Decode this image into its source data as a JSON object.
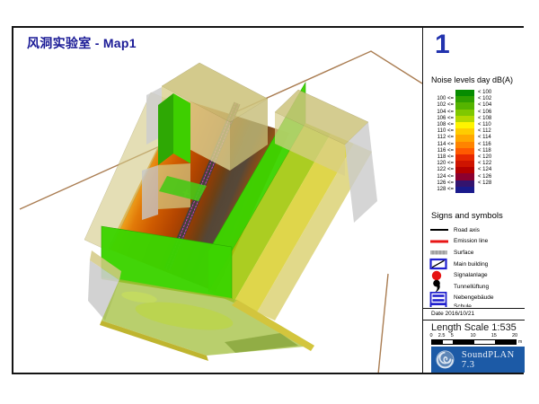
{
  "title": "风洞实验室 - Map1",
  "map_number": "1",
  "noise_legend": {
    "title": "Noise levels day dB(A)",
    "rows": [
      {
        "from": "",
        "to": "< 100",
        "color": "#068C00"
      },
      {
        "from": "100 <=",
        "to": "< 102",
        "color": "#2FA000"
      },
      {
        "from": "102 <=",
        "to": "< 104",
        "color": "#55B400"
      },
      {
        "from": "104 <=",
        "to": "< 106",
        "color": "#7FC800"
      },
      {
        "from": "106 <=",
        "to": "< 108",
        "color": "#B4D800"
      },
      {
        "from": "108 <=",
        "to": "< 110",
        "color": "#FFF400"
      },
      {
        "from": "110 <=",
        "to": "< 112",
        "color": "#FFCC00"
      },
      {
        "from": "112 <=",
        "to": "< 114",
        "color": "#FFA800"
      },
      {
        "from": "114 <=",
        "to": "< 116",
        "color": "#FF8400"
      },
      {
        "from": "116 <=",
        "to": "< 118",
        "color": "#FF5A00"
      },
      {
        "from": "118 <=",
        "to": "< 120",
        "color": "#E62800"
      },
      {
        "from": "120 <=",
        "to": "< 122",
        "color": "#CE1400"
      },
      {
        "from": "122 <=",
        "to": "< 124",
        "color": "#B40000"
      },
      {
        "from": "124 <=",
        "to": "< 126",
        "color": "#8C0030"
      },
      {
        "from": "126 <=",
        "to": "< 128",
        "color": "#34146E"
      },
      {
        "from": "128 <=",
        "to": "",
        "color": "#1A1A8C"
      }
    ]
  },
  "symbols": {
    "title": "Signs and symbols",
    "items": [
      {
        "label": "Road axis",
        "icon": "road-axis"
      },
      {
        "label": "Emission line",
        "icon": "emission-line"
      },
      {
        "label": "Surface",
        "icon": "surface"
      },
      {
        "label": "Main building",
        "icon": "main-building"
      },
      {
        "label": "Signalanlage",
        "icon": "signal"
      },
      {
        "label": "Tunnellüftung",
        "icon": "tunnel-vent"
      },
      {
        "label": "Nebengebäude",
        "icon": "annex-building"
      },
      {
        "label": "Schule",
        "icon": "school",
        "clipped": true
      }
    ]
  },
  "date_label": "Date 2016/10/21",
  "scale": {
    "label": "Length Scale 1:535",
    "ticks": [
      "0",
      "2.5",
      "5",
      "10",
      "15",
      "20"
    ],
    "unit": "m"
  },
  "logo": {
    "text": "SoundPLAN 7.3"
  },
  "colors": {
    "title_navy": "#1A1A96",
    "map_number_blue": "#2233AE",
    "brand_blue": "#1C5AA6",
    "boundary_brown": "#AA7D52",
    "wall_green": "#3CD400",
    "corridor_orange": "#CE5A00",
    "road_dark": "#45413B",
    "emission_magenta": "#E03CC8"
  }
}
